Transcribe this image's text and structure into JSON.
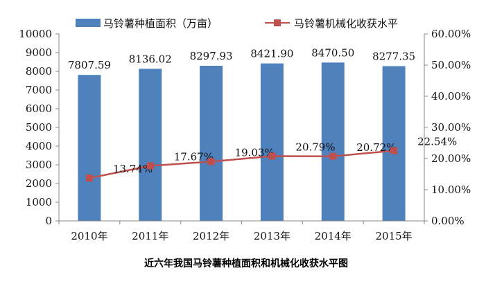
{
  "chart_data": {
    "type": "bar",
    "title": "",
    "caption": "近六年我国马铃薯种植面积和机械化收获水平图",
    "categories": [
      "2010年",
      "2011年",
      "2012年",
      "2013年",
      "2014年",
      "2015年"
    ],
    "series": [
      {
        "name": "马铃薯种植面积（万亩）",
        "type": "bar",
        "axis": "left",
        "color": "#4f81bd",
        "values": [
          7807.59,
          8136.02,
          8297.93,
          8421.9,
          8470.5,
          8277.35
        ],
        "labels": [
          "7807.59",
          "8136.02",
          "8297.93",
          "8421.90",
          "8470.50",
          "8277.35"
        ]
      },
      {
        "name": "马铃薯机械化收获水平",
        "type": "line",
        "axis": "right",
        "color": "#c0504d",
        "values": [
          13.74,
          17.67,
          19.03,
          20.79,
          20.72,
          22.54
        ],
        "labels": [
          "13.74%",
          "17.67%",
          "19.03%",
          "20.79%",
          "20.72%",
          "22.54%"
        ]
      }
    ],
    "y_left": {
      "min": 0,
      "max": 10000,
      "step": 1000,
      "ticks": [
        "0",
        "1000",
        "2000",
        "3000",
        "4000",
        "5000",
        "6000",
        "7000",
        "8000",
        "9000",
        "10000"
      ]
    },
    "y_right": {
      "min": 0,
      "max": 60,
      "step": 10,
      "ticks": [
        "0.00%",
        "10.00%",
        "20.00%",
        "30.00%",
        "40.00%",
        "50.00%",
        "60.00%"
      ]
    },
    "grid": false,
    "legend": "top"
  }
}
